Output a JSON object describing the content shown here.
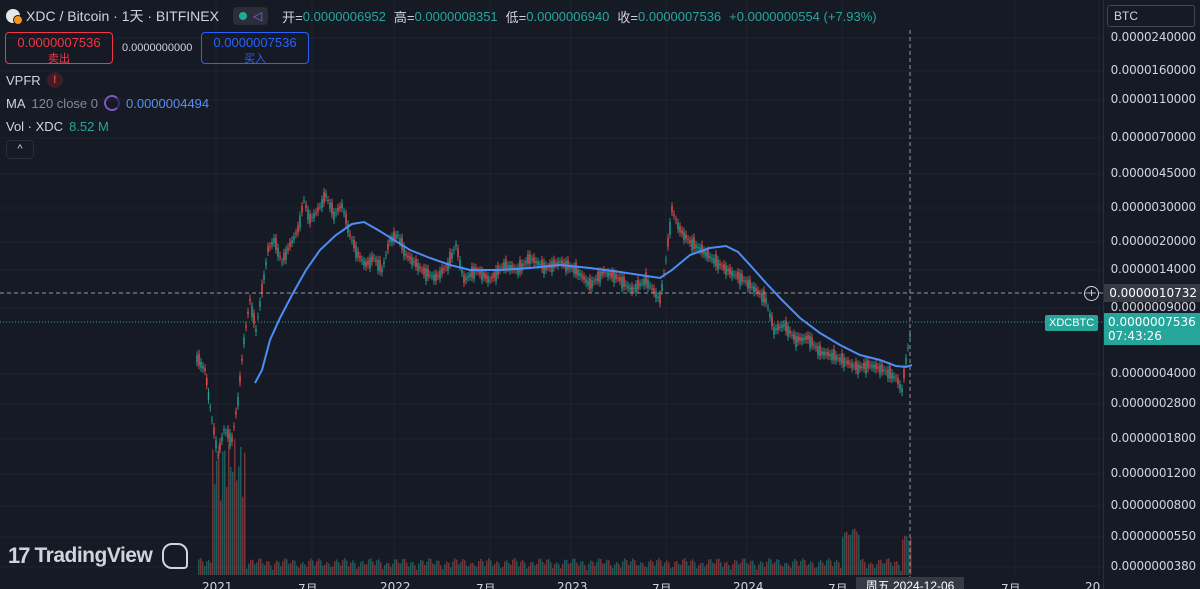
{
  "header": {
    "symbol_title": "XDC / Bitcoin · 1天 · BITFINEX",
    "ohlc": [
      {
        "label": "开=",
        "value": "0.0000006952"
      },
      {
        "label": "高=",
        "value": "0.0000008351"
      },
      {
        "label": "低=",
        "value": "0.0000006940"
      },
      {
        "label": "收=",
        "value": "0.0000007536"
      }
    ],
    "change": "+0.0000000554 (+7.93%)",
    "market_status_color": "#22ab94"
  },
  "trade": {
    "sell_price": "0.0000007536",
    "sell_label": "卖出",
    "spread": "0.0000000000",
    "buy_price": "0.0000007536",
    "buy_label": "买入"
  },
  "indicators": {
    "vpfr_label": "VPFR",
    "vpfr_warning": "!",
    "ma_label": "MA",
    "ma_params": "120 close 0",
    "ma_value": "0.0000004494",
    "vol_label": "Vol · XDC",
    "vol_value": "8.52 M",
    "collapse_symbol": "^"
  },
  "price_axis": {
    "currency": "BTC",
    "labels": [
      "0.0000240000",
      "0.0000160000",
      "0.0000110000",
      "0.0000070000",
      "0.0000045000",
      "0.0000030000",
      "0.0000020000",
      "0.0000014000",
      "0.0000009000",
      "0.0000004000",
      "0.0000002800",
      "0.0000001800",
      "0.0000001200",
      "0.0000000800",
      "0.0000000550",
      "0.0000000380"
    ],
    "crosshair_price": "0.0000010732",
    "last_price": "0.0000007536",
    "countdown": "07:43:26",
    "symbol_tag": "XDCBTC",
    "add_icon": "+"
  },
  "time_axis": {
    "labels": [
      "2021",
      "7月",
      "2022",
      "7月",
      "2023",
      "7月",
      "2024",
      "7月",
      "7月",
      "20"
    ],
    "crosshair_date": "周五 2024-12-06"
  },
  "watermark": {
    "text": "TradingView"
  },
  "colors": {
    "background": "#161a25",
    "up": "#26a69a",
    "down": "#ef5350",
    "ma_line": "#4c8df6"
  },
  "chart_data": {
    "type": "line",
    "ma_period": 120
  }
}
